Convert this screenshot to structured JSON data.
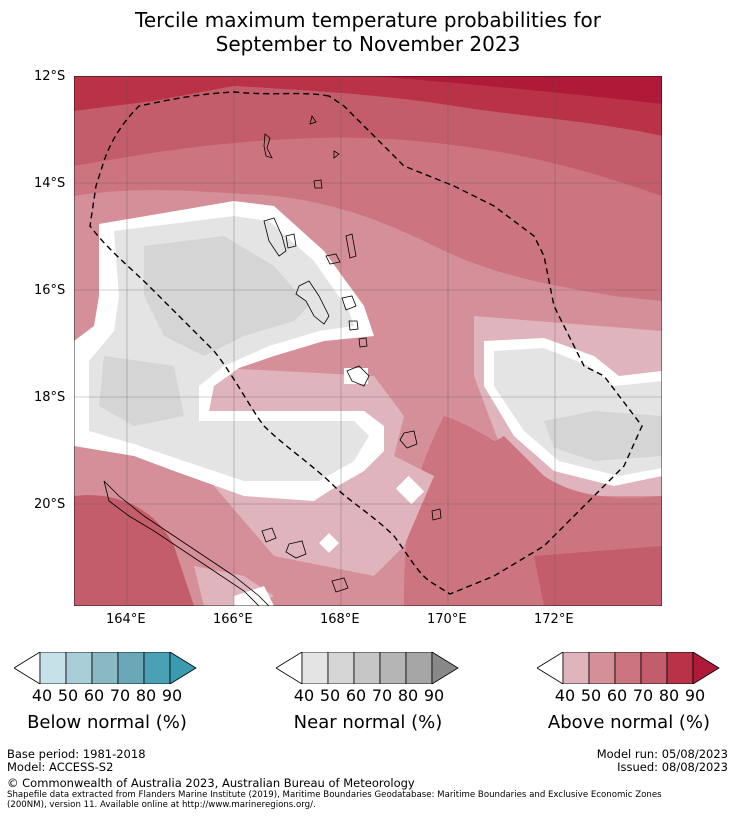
{
  "title_line1": "Tercile maximum temperature probabilities for",
  "title_line2": "September to November 2023",
  "map": {
    "lat_ticks": [
      "12°S",
      "14°S",
      "16°S",
      "18°S",
      "20°S"
    ],
    "lon_ticks": [
      "164°E",
      "166°E",
      "168°E",
      "170°E",
      "172°E"
    ],
    "boundary": "dashed-eez-line",
    "land": "coastline-outline"
  },
  "colorbars": [
    {
      "label": "Below normal (%)",
      "ticks": [
        "40",
        "50",
        "60",
        "70",
        "80",
        "90"
      ],
      "colors": [
        "#ffffff",
        "#c7e1e8",
        "#a8cdd6",
        "#88b9c4",
        "#6aa8b8",
        "#4aa0b4",
        "#3a9ab0"
      ]
    },
    {
      "label": "Near normal (%)",
      "ticks": [
        "40",
        "50",
        "60",
        "70",
        "80",
        "90"
      ],
      "colors": [
        "#ffffff",
        "#e4e4e4",
        "#d5d5d5",
        "#c6c6c6",
        "#b5b5b5",
        "#a6a6a6",
        "#888888"
      ]
    },
    {
      "label": "Above normal (%)",
      "ticks": [
        "40",
        "50",
        "60",
        "70",
        "80",
        "90"
      ],
      "colors": [
        "#ffffff",
        "#e0b4bc",
        "#d58f99",
        "#cc7581",
        "#c45d6b",
        "#b93246",
        "#b01a39"
      ]
    }
  ],
  "footer": {
    "base_period": "Base period: 1981-2018",
    "model": "Model: ACCESS-S2",
    "model_run": "Model run: 05/08/2023",
    "issued": "Issued: 08/08/2023",
    "copyright": "© Commonwealth of Australia 2023, Australian Bureau of Meteorology",
    "shapefile_line1": "Shapefile data extracted from Flanders Marine Institute (2019), Maritime Boundaries Geodatabase: Maritime Boundaries and Exclusive Economic Zones",
    "shapefile_line2": "(200NM), version 11. Available online at http://www.marineregions.org/."
  }
}
